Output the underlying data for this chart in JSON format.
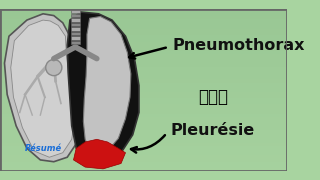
{
  "bg_color": "#a8d4a0",
  "label_pneumo": "Pneumothorax",
  "label_pleu": "Pleurésie",
  "label_resume": "Résumé",
  "resume_color": "#1a6ed8",
  "label_color": "#111111",
  "text_fontsize_large": 11.5,
  "text_fontsize_small": 6.0,
  "lung_left_color": "#c2c2c2",
  "lung_right_dark_color": "#111111",
  "lung_right_inner_color": "#c2c2c2",
  "fluid_color": "#cc1111",
  "border_color": "#555555",
  "trachea_color": "#999999",
  "bronchi_color": "#aaaaaa"
}
